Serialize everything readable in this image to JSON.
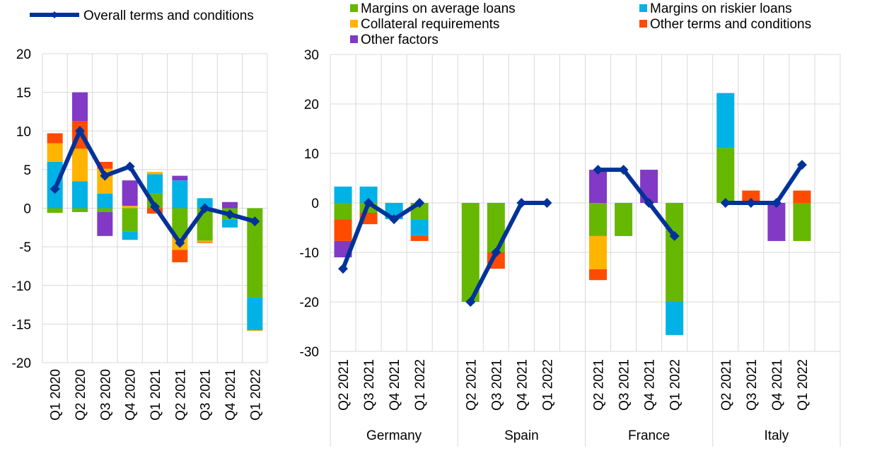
{
  "colors": {
    "margins_average": "#66b700",
    "margins_riskier": "#00b2e6",
    "collateral": "#ffb400",
    "other_terms": "#ff4b00",
    "other_factors": "#8139c6",
    "overall": "#003299",
    "grid": "#d9d9d9"
  },
  "legend": {
    "overall": "Overall terms and conditions",
    "margins_average": "Margins on average loans",
    "margins_riskier": "Margins on riskier loans",
    "collateral": "Collateral requirements",
    "other_terms": "Other terms and conditions",
    "other_factors": "Other factors"
  },
  "chart_data": [
    {
      "type": "bar",
      "stacked": true,
      "ylim": [
        -20,
        20
      ],
      "yticks": [
        -20,
        -15,
        -10,
        -5,
        0,
        5,
        10,
        15,
        20
      ],
      "categories": [
        "Q1 2020",
        "Q2 2020",
        "Q3 2020",
        "Q4 2020",
        "Q1 2021",
        "Q2 2021",
        "Q3 2021",
        "Q4 2021",
        "Q1 2022"
      ],
      "series": [
        {
          "name": "Margins on average loans",
          "key": "margins_average",
          "values": [
            -0.6,
            -0.5,
            -0.5,
            -3.0,
            1.9,
            -3.8,
            -4.2,
            -1.5,
            -11.5
          ]
        },
        {
          "name": "Margins on riskier loans",
          "key": "margins_riskier",
          "values": [
            6.0,
            3.5,
            1.9,
            -1.1,
            2.5,
            3.6,
            1.3,
            -1.0,
            -4.3
          ]
        },
        {
          "name": "Collateral requirements",
          "key": "collateral",
          "values": [
            2.4,
            4.2,
            3.2,
            0.3,
            0.3,
            -1.6,
            -0.2,
            0.0,
            -0.1
          ]
        },
        {
          "name": "Other terms and conditions",
          "key": "other_terms",
          "values": [
            1.3,
            3.6,
            0.9,
            0.0,
            -0.7,
            -1.6,
            -0.1,
            0.0,
            0.0
          ]
        },
        {
          "name": "Other factors",
          "key": "other_factors",
          "values": [
            0.0,
            3.7,
            -3.1,
            3.3,
            0.0,
            0.6,
            0.0,
            0.8,
            0.0
          ]
        }
      ],
      "line": {
        "name": "Overall terms and conditions",
        "key": "overall",
        "values": [
          2.5,
          10.0,
          4.2,
          5.4,
          0.2,
          -4.5,
          0.0,
          -0.8,
          -1.7
        ]
      }
    },
    {
      "type": "bar",
      "stacked": true,
      "ylim": [
        -30,
        30
      ],
      "yticks": [
        -30,
        -20,
        -10,
        0,
        10,
        20,
        30
      ],
      "groups": [
        {
          "label": "Germany",
          "categories": [
            "Q2 2021",
            "Q3 2021",
            "Q4 2021",
            "Q1 2022"
          ]
        },
        {
          "label": "Spain",
          "categories": [
            "Q2 2021",
            "Q3 2021",
            "Q4 2021",
            "Q1 2022"
          ]
        },
        {
          "label": "France",
          "categories": [
            "Q2 2021",
            "Q3 2021",
            "Q4 2021",
            "Q1 2022"
          ]
        },
        {
          "label": "Italy",
          "categories": [
            "Q2 2021",
            "Q3 2021",
            "Q4 2021",
            "Q1 2022"
          ]
        }
      ],
      "series": [
        {
          "name": "Margins on average loans",
          "key": "margins_average",
          "values": [
            -3.3,
            -2.0,
            0.0,
            -3.3,
            -20.0,
            -10.0,
            0.0,
            0.0,
            -6.7,
            -6.7,
            0.0,
            -20.0,
            11.1,
            0.0,
            0.0,
            -7.7
          ]
        },
        {
          "name": "Margins on riskier loans",
          "key": "margins_riskier",
          "values": [
            3.3,
            3.3,
            -3.3,
            -3.3,
            0.0,
            0.0,
            0.0,
            0.0,
            0.0,
            0.0,
            0.0,
            -6.7,
            11.1,
            0.0,
            0.0,
            0.0
          ]
        },
        {
          "name": "Collateral requirements",
          "key": "collateral",
          "values": [
            0.0,
            0.0,
            0.0,
            0.0,
            0.0,
            0.0,
            0.0,
            0.0,
            -6.7,
            0.0,
            0.0,
            0.0,
            0.0,
            0.0,
            0.0,
            0.0
          ]
        },
        {
          "name": "Other terms and conditions",
          "key": "other_terms",
          "values": [
            -4.4,
            -2.3,
            0.0,
            -1.1,
            0.0,
            -3.3,
            0.0,
            0.0,
            -2.2,
            0.0,
            0.0,
            0.0,
            0.0,
            2.5,
            0.0,
            2.5
          ]
        },
        {
          "name": "Other factors",
          "key": "other_factors",
          "values": [
            -3.3,
            0.0,
            0.0,
            0.0,
            0.0,
            0.0,
            0.0,
            0.0,
            6.7,
            0.0,
            6.7,
            0.0,
            0.0,
            0.0,
            -7.7,
            0.0
          ]
        }
      ],
      "line": {
        "name": "Overall terms and conditions",
        "key": "overall",
        "values": [
          -13.3,
          0.0,
          -3.3,
          0.0,
          -20.0,
          -10.0,
          0.0,
          0.0,
          6.7,
          6.7,
          0.0,
          -6.7,
          0.0,
          0.0,
          0.0,
          7.7
        ]
      }
    }
  ]
}
